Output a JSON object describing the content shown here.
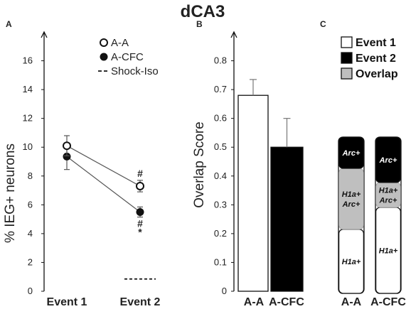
{
  "title": "dCA3",
  "panels": {
    "a": "A",
    "b": "B",
    "c": "C"
  },
  "chart_data": [
    {
      "panel": "A",
      "type": "line",
      "ylabel": "% IEG+ neurons",
      "categories": [
        "Event 1",
        "Event 2"
      ],
      "ylim": [
        0,
        18
      ],
      "yticks": [
        0,
        2,
        4,
        6,
        8,
        10,
        12,
        14,
        16
      ],
      "series": [
        {
          "name": "A-A",
          "marker": "open-circle",
          "values": [
            10.1,
            7.3
          ],
          "errors": [
            0.7,
            0.4
          ]
        },
        {
          "name": "A-CFC",
          "marker": "filled-circle",
          "values": [
            9.35,
            5.5
          ],
          "errors": [
            0.9,
            0.35
          ]
        },
        {
          "name": "Shock-Iso",
          "marker": "dashed-line",
          "values": [
            null,
            0.85
          ]
        }
      ],
      "annotations": [
        {
          "text": "#",
          "category": "Event 2",
          "series": "A-A",
          "position": "above"
        },
        {
          "text": "#",
          "category": "Event 2",
          "series": "A-CFC",
          "position": "below"
        },
        {
          "text": "*",
          "category": "Event 2",
          "series": "A-CFC",
          "position": "below"
        }
      ],
      "legend": "top-right"
    },
    {
      "panel": "B",
      "type": "bar",
      "ylabel": "Overlap Score",
      "categories": [
        "A-A",
        "A-CFC"
      ],
      "values": [
        0.68,
        0.5
      ],
      "errors": [
        0.055,
        0.1
      ],
      "colors": [
        "#ffffff",
        "#000000"
      ],
      "ylim": [
        0,
        0.9
      ],
      "yticks": [
        "0",
        "0.1",
        "0.2",
        "0.3",
        "0.4",
        "0.5",
        "0.6",
        "0.7",
        "0.8"
      ]
    },
    {
      "panel": "C",
      "type": "bar",
      "stacked": true,
      "categories": [
        "A-A",
        "A-CFC"
      ],
      "legend": [
        {
          "label": "Event 1",
          "color": "#ffffff"
        },
        {
          "label": "Event 2",
          "color": "#000000"
        },
        {
          "label": "Overlap",
          "color": "#bfbfbf"
        }
      ],
      "series": [
        {
          "name": "Event 1",
          "color": "#ffffff",
          "label": "H1a+",
          "values": [
            0.41,
            0.55
          ]
        },
        {
          "name": "Overlap",
          "color": "#bfbfbf",
          "label": "H1a+ Arc+",
          "values": [
            0.39,
            0.16
          ]
        },
        {
          "name": "Event 2",
          "color": "#000000",
          "label": "Arc+",
          "values": [
            0.2,
            0.29
          ]
        }
      ]
    }
  ]
}
